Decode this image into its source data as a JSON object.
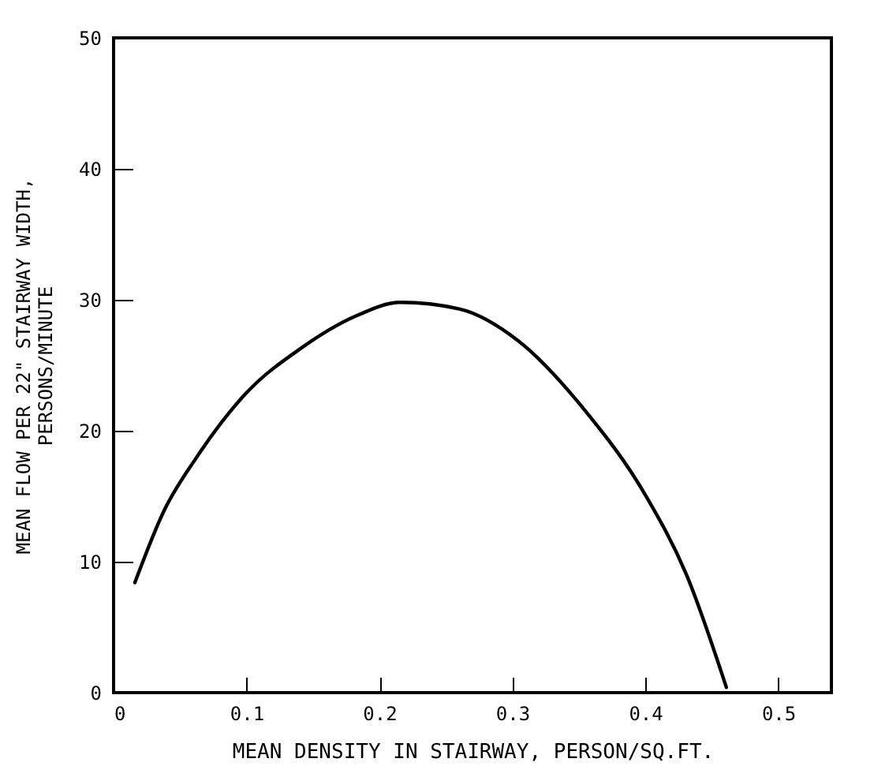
{
  "chart_data": {
    "type": "line",
    "xlabel": "MEAN DENSITY IN STAIRWAY, PERSON/SQ.FT.",
    "ylabel": "MEAN FLOW PER 22\" STAIRWAY WIDTH,\nPERSONS/MINUTE",
    "x": [
      0.016,
      0.038,
      0.062,
      0.1,
      0.141,
      0.181,
      0.216,
      0.26,
      0.304,
      0.355,
      0.4,
      0.431,
      0.461
    ],
    "series": [
      {
        "color": "#000000",
        "values": [
          8.4,
          13.9,
          17.9,
          22.9,
          26.3,
          28.7,
          29.8,
          29.3,
          26.9,
          21.5,
          15.1,
          9.0,
          0.4
        ]
      }
    ],
    "xlim": [
      0,
      0.54
    ],
    "ylim": [
      0,
      50
    ],
    "xticks": [
      0,
      0.1,
      0.2,
      0.3,
      0.4,
      0.5
    ],
    "yticks": [
      0,
      10,
      20,
      30,
      40,
      50
    ],
    "grid": false,
    "legend": false,
    "line_style": "solid"
  }
}
